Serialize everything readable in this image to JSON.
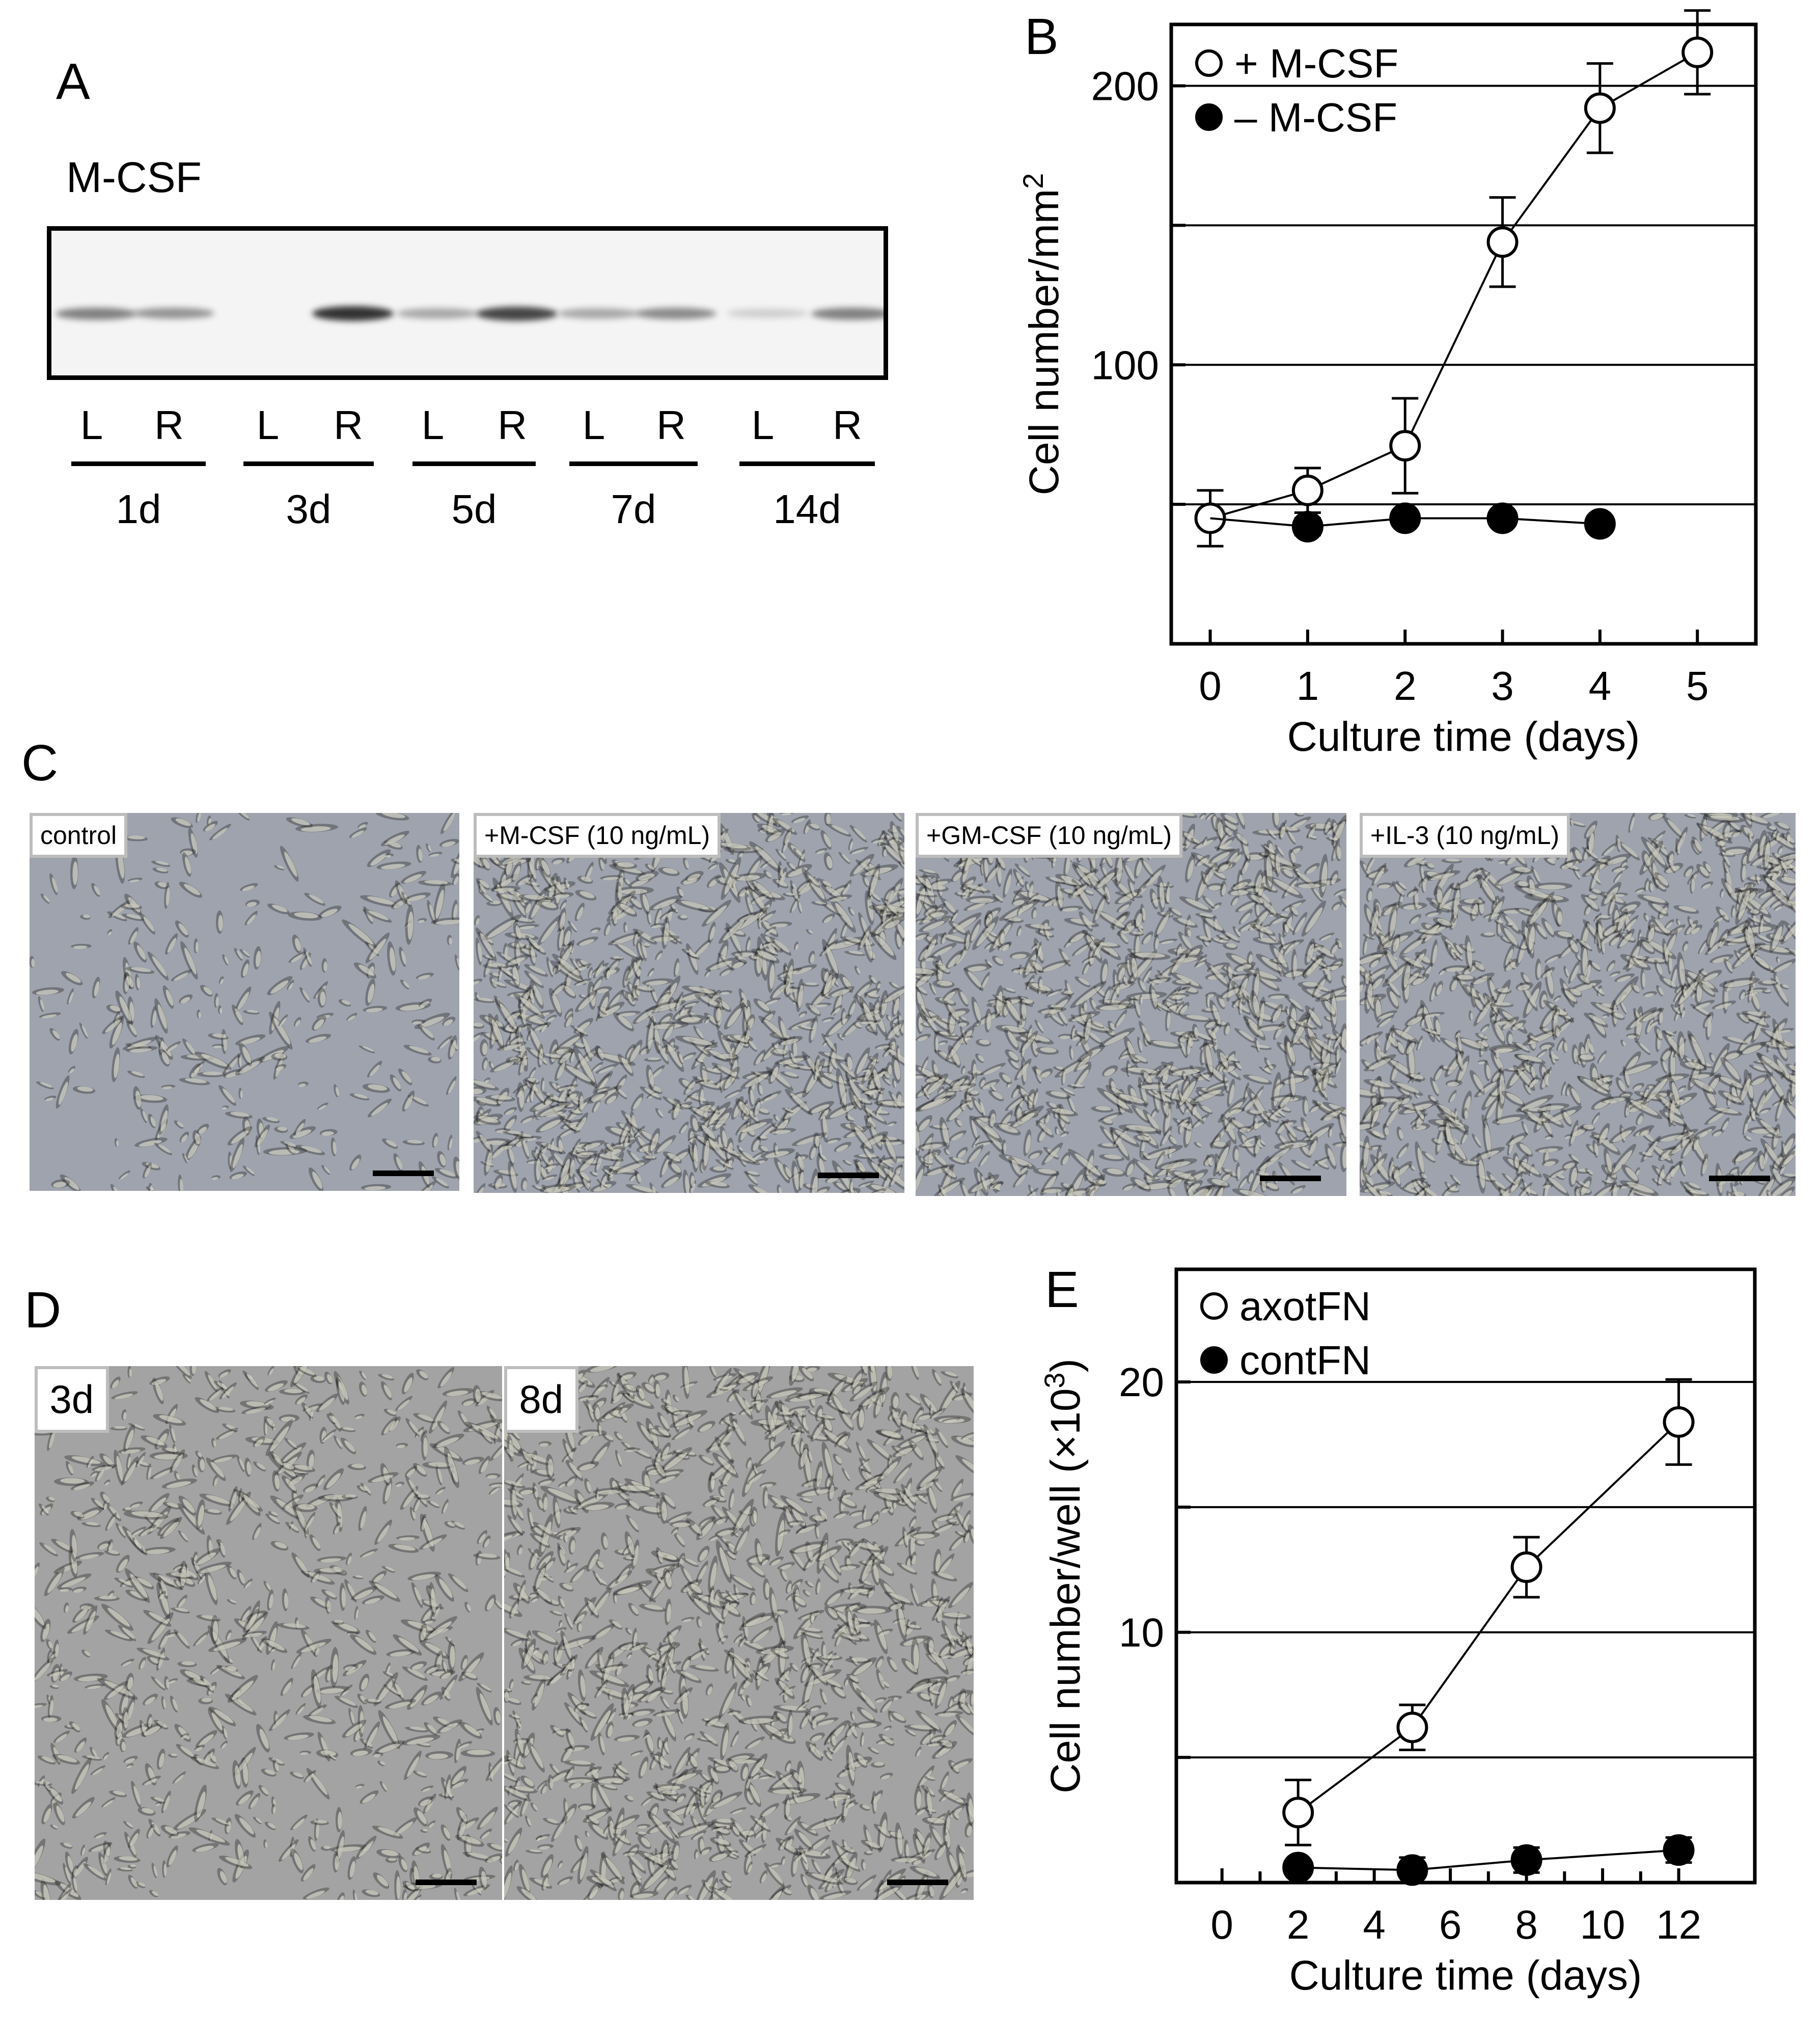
{
  "panels": {
    "a": "A",
    "b": "B",
    "c": "C",
    "d": "D",
    "e": "E"
  },
  "blot": {
    "title": "M-CSF",
    "lanes": [
      "L",
      "R",
      "L",
      "R",
      "L",
      "R",
      "L",
      "R",
      "L",
      "R"
    ],
    "timepoints": [
      "1d",
      "3d",
      "5d",
      "7d",
      "14d"
    ],
    "band_intensity": [
      0.55,
      0.45,
      0.0,
      0.95,
      0.35,
      0.85,
      0.35,
      0.5,
      0.15,
      0.55
    ]
  },
  "micrographs_c": [
    {
      "label": "control",
      "density": 0.15
    },
    {
      "label": "+M-CSF (10 ng/mL)",
      "density": 0.85
    },
    {
      "label": "+GM-CSF (10 ng/mL)",
      "density": 0.85
    },
    {
      "label": "+IL-3 (10 ng/mL)",
      "density": 0.8
    }
  ],
  "micrographs_d": [
    {
      "label": "3d",
      "density": 0.55
    },
    {
      "label": "8d",
      "density": 1.0
    }
  ],
  "chart_data": [
    {
      "type": "scatter",
      "panel": "B",
      "xlabel": "Culture time (days)",
      "ylabel_main": "Cell number/mm",
      "ylabel_sup": "2",
      "xlim": [
        -0.4,
        5.6
      ],
      "ylim": [
        0,
        222
      ],
      "xticks": [
        "0",
        "1",
        "2",
        "3",
        "4",
        "5"
      ],
      "yticks": [
        "100",
        "200"
      ],
      "gridlines": [
        50,
        100,
        150,
        200
      ],
      "legend_position": "top-left",
      "series": [
        {
          "name": "+ M-CSF",
          "marker": "open-circle",
          "x": [
            0,
            1,
            2,
            3,
            4,
            5
          ],
          "y": [
            45,
            55,
            71,
            144,
            192,
            212
          ],
          "err": [
            10,
            8,
            17,
            16,
            16,
            15
          ]
        },
        {
          "name": "– M-CSF",
          "marker": "filled-circle",
          "x": [
            1,
            2,
            3,
            4
          ],
          "y": [
            42,
            45,
            45,
            43
          ],
          "err": [
            3,
            0,
            0,
            0
          ]
        }
      ]
    },
    {
      "type": "scatter",
      "panel": "E",
      "xlabel": "Culture time (days)",
      "ylabel_main": "Cell number/well (×10",
      "ylabel_sup": "3",
      "ylabel_tail": ")",
      "xlim": [
        -1.2,
        14.0
      ],
      "ylim": [
        0,
        24.5
      ],
      "xticks": [
        "0",
        "2",
        "4",
        "6",
        "8",
        "10",
        "12"
      ],
      "yticks": [
        "10",
        "20"
      ],
      "gridlines": [
        5,
        10,
        15,
        20
      ],
      "legend_position": "top-left",
      "series": [
        {
          "name": "axotFN",
          "marker": "open-circle",
          "x": [
            2,
            5,
            8,
            12
          ],
          "y": [
            2.8,
            6.2,
            12.6,
            18.4
          ],
          "err": [
            1.3,
            0.9,
            1.2,
            1.7
          ]
        },
        {
          "name": "contFN",
          "marker": "filled-circle",
          "x": [
            2,
            5,
            8,
            12
          ],
          "y": [
            0.6,
            0.5,
            0.9,
            1.3
          ],
          "err": [
            0,
            0.5,
            0.5,
            0.5
          ]
        }
      ]
    }
  ]
}
